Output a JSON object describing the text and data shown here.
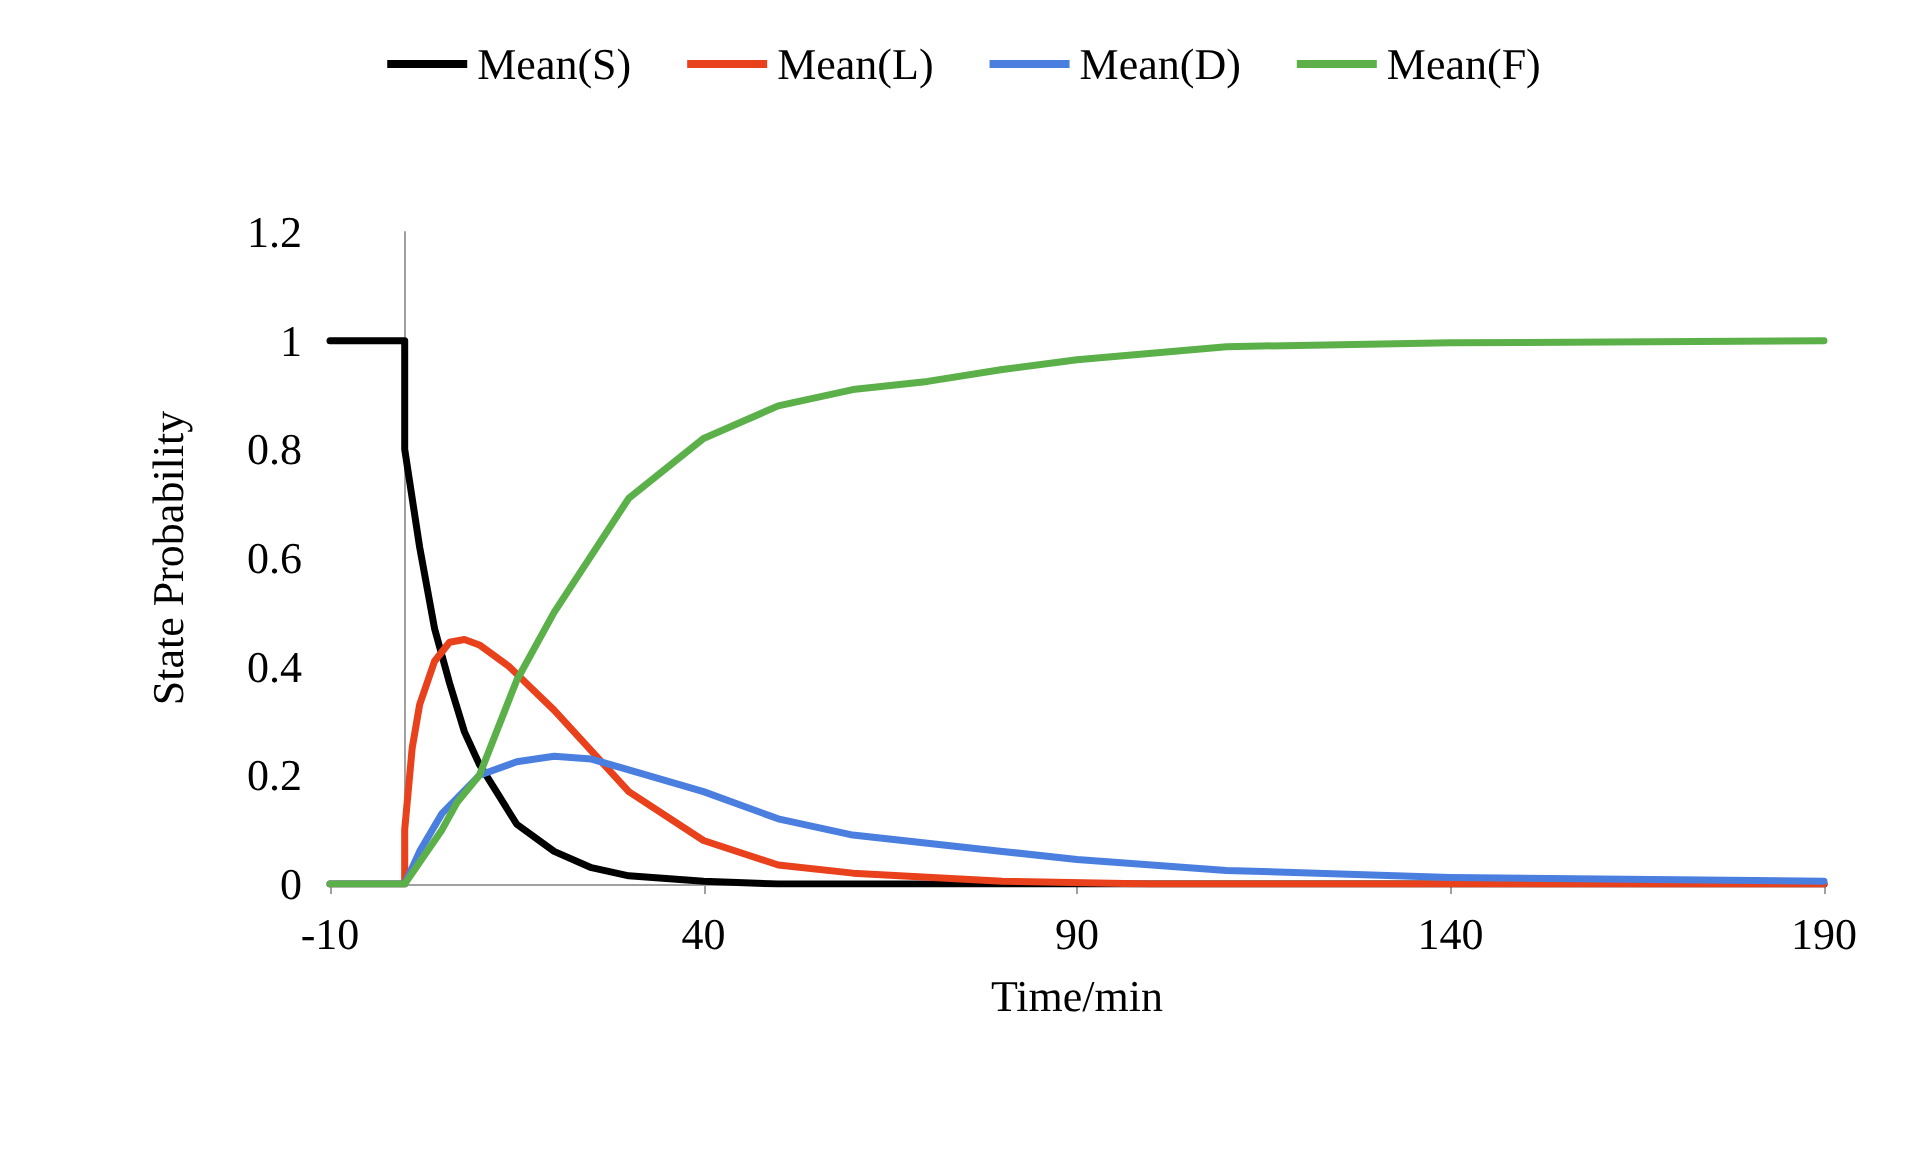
{
  "chart_data": {
    "type": "line",
    "xlabel": "Time/min",
    "ylabel": "State Probability",
    "xlim": [
      -10,
      190
    ],
    "xticks": [
      -10,
      40,
      90,
      140,
      190
    ],
    "ylim": [
      0,
      1.2
    ],
    "yticks": [
      0,
      0.2,
      0.4,
      0.6,
      0.8,
      1,
      1.2
    ],
    "grid": false,
    "legend": "top",
    "marker": "none",
    "line_style": "solid",
    "series": [
      {
        "name": "Mean(S)",
        "color": "#000000",
        "x": [
          -10,
          0,
          0,
          2,
          4,
          6,
          8,
          10,
          15,
          20,
          25,
          30,
          40,
          50,
          190
        ],
        "values": [
          1,
          1,
          0.8,
          0.62,
          0.47,
          0.37,
          0.28,
          0.22,
          0.11,
          0.06,
          0.03,
          0.015,
          0.005,
          0,
          0
        ]
      },
      {
        "name": "Mean(L)",
        "color": "#e8411c",
        "x": [
          -10,
          0,
          0,
          1,
          2,
          4,
          6,
          8,
          10,
          14,
          17,
          20,
          30,
          40,
          50,
          60,
          80,
          100,
          190
        ],
        "values": [
          0,
          0,
          0.1,
          0.25,
          0.33,
          0.41,
          0.445,
          0.45,
          0.44,
          0.4,
          0.36,
          0.32,
          0.17,
          0.08,
          0.035,
          0.02,
          0.005,
          0,
          0
        ]
      },
      {
        "name": "Mean(D)",
        "color": "#4a7fe0",
        "x": [
          -10,
          0,
          2,
          5,
          10,
          15,
          20,
          25,
          30,
          40,
          50,
          60,
          70,
          80,
          90,
          110,
          140,
          190
        ],
        "values": [
          0,
          0,
          0.06,
          0.13,
          0.2,
          0.225,
          0.235,
          0.23,
          0.21,
          0.17,
          0.12,
          0.09,
          0.075,
          0.06,
          0.045,
          0.025,
          0.012,
          0.005
        ]
      },
      {
        "name": "Mean(F)",
        "color": "#5cb04a",
        "x": [
          -10,
          0,
          2,
          5,
          7,
          10,
          15,
          20,
          30,
          40,
          50,
          60,
          70,
          80,
          90,
          110,
          140,
          190
        ],
        "values": [
          0,
          0,
          0.04,
          0.1,
          0.15,
          0.2,
          0.375,
          0.5,
          0.71,
          0.82,
          0.88,
          0.91,
          0.925,
          0.947,
          0.965,
          0.989,
          0.996,
          1
        ]
      }
    ]
  }
}
